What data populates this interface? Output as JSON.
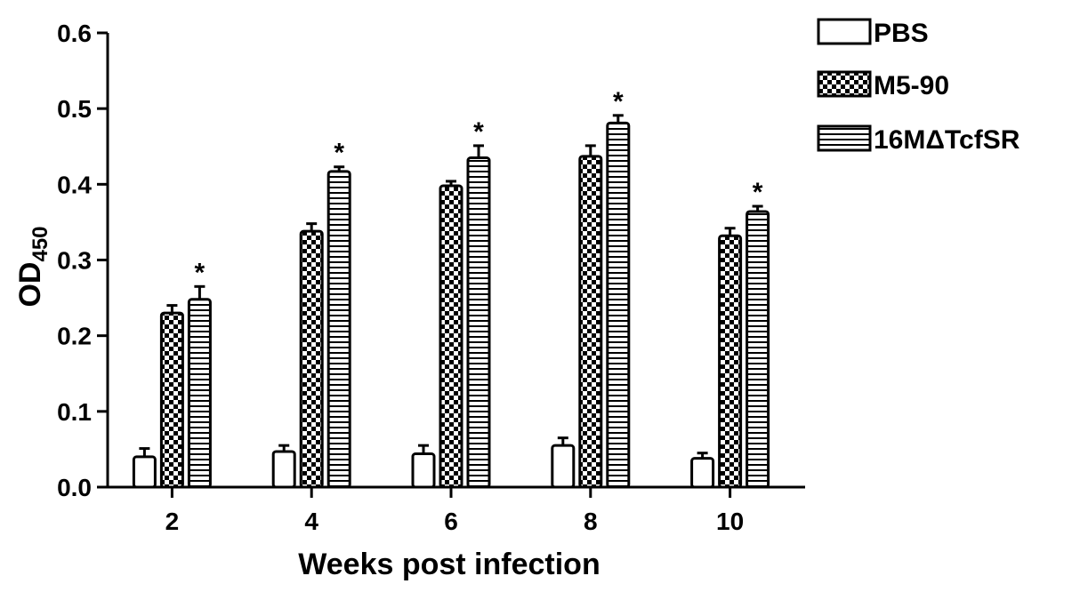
{
  "chart_data": {
    "type": "bar",
    "categories": [
      "2",
      "4",
      "6",
      "8",
      "10"
    ],
    "series": [
      {
        "name": "PBS",
        "values": [
          0.04,
          0.047,
          0.044,
          0.055,
          0.038
        ],
        "errors": [
          0.011,
          0.008,
          0.011,
          0.01,
          0.007
        ],
        "pattern": "plain"
      },
      {
        "name": "M5-90",
        "values": [
          0.23,
          0.338,
          0.398,
          0.437,
          0.332
        ],
        "errors": [
          0.01,
          0.01,
          0.006,
          0.014,
          0.01
        ],
        "pattern": "checker"
      },
      {
        "name": "16MΔTcfSR",
        "values": [
          0.248,
          0.417,
          0.435,
          0.481,
          0.364
        ],
        "errors": [
          0.017,
          0.006,
          0.016,
          0.01,
          0.007
        ],
        "pattern": "stripes"
      }
    ],
    "significance": {
      "marker": "*",
      "series": "16MΔTcfSR",
      "categories": [
        "2",
        "4",
        "6",
        "8",
        "10"
      ]
    },
    "xlabel": "Weeks post infection",
    "ylabel": {
      "main": "OD",
      "subscript": "450"
    },
    "ylim": [
      0,
      0.6
    ],
    "yticks": [
      "0.0",
      "0.1",
      "0.2",
      "0.3",
      "0.4",
      "0.5",
      "0.6"
    ],
    "grid": false,
    "legend_position": "top-right",
    "colors": {
      "bar_fill": "#ffffff",
      "ink": "#000000"
    }
  }
}
